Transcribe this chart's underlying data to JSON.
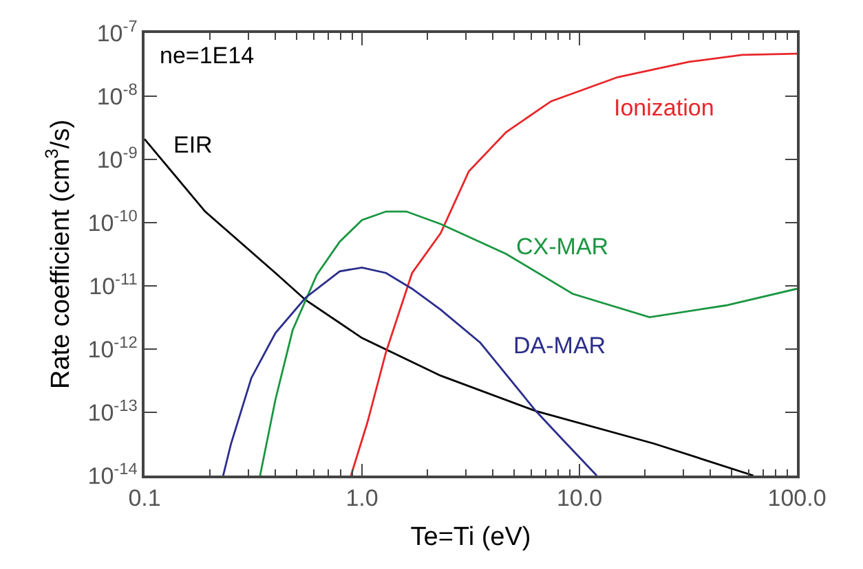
{
  "chart_data": {
    "type": "line",
    "xlabel": "Te=Ti (eV)",
    "ylabel": "Rate coefficient (cm$^{3}$/s)",
    "annotations": [
      "ne=1E14"
    ],
    "log": "xy",
    "legend": false,
    "marker": "none",
    "line_style": "solid",
    "xlim": [
      0.1,
      100
    ],
    "ylim": [
      1e-14,
      1e-07
    ],
    "xticks": [
      {
        "value": 0.1,
        "label": "0.1"
      },
      {
        "value": 1,
        "label": "1.0"
      },
      {
        "value": 10,
        "label": "10.0"
      },
      {
        "value": 100,
        "label": "100.0"
      }
    ],
    "yticks": [
      {
        "value": 1e-14,
        "label": "10$^{-14}$"
      },
      {
        "value": 1e-13,
        "label": "10$^{-13}$"
      },
      {
        "value": 1e-12,
        "label": "10$^{-12}$"
      },
      {
        "value": 1e-11,
        "label": "10$^{-11}$"
      },
      {
        "value": 1e-10,
        "label": "10$^{-10}$"
      },
      {
        "value": 1e-09,
        "label": "10$^{-9}$"
      },
      {
        "value": 1e-08,
        "label": "10$^{-8}$"
      },
      {
        "value": 1e-07,
        "label": "10$^{-7}$"
      }
    ],
    "series": [
      {
        "name": "EIR",
        "color": "#000000",
        "x": [
          0.1,
          0.19,
          0.4,
          0.55,
          1.0,
          2.3,
          6.3,
          22,
          63
        ],
        "values": [
          2.1e-09,
          1.5e-10,
          1.6e-11,
          6e-12,
          1.5e-12,
          3.8e-13,
          1.05e-13,
          3.2e-14,
          1e-14
        ]
      },
      {
        "name": "Ionization",
        "color": "#e8262a",
        "x": [
          0.89,
          1.06,
          1.29,
          1.7,
          2.3,
          3.1,
          4.6,
          7.4,
          15,
          32,
          56,
          100
        ],
        "values": [
          1e-14,
          7e-14,
          9e-13,
          1.6e-11,
          6.8e-11,
          6.5e-10,
          2.7e-09,
          8.3e-09,
          2e-08,
          3.5e-08,
          4.5e-08,
          4.7e-08
        ]
      },
      {
        "name": "CX-MAR",
        "color": "#1a9641",
        "x": [
          0.34,
          0.4,
          0.48,
          0.62,
          0.79,
          1.0,
          1.29,
          1.6,
          2.3,
          4.6,
          9.3,
          21,
          47,
          100
        ],
        "values": [
          1e-14,
          1.6e-13,
          2e-12,
          1.5e-11,
          5e-11,
          1.1e-10,
          1.5e-10,
          1.5e-10,
          9.5e-11,
          3.2e-11,
          7.5e-12,
          3.2e-12,
          4.9e-12,
          9e-12
        ]
      },
      {
        "name": "DA-MAR",
        "color": "#2b2d8c",
        "x": [
          0.23,
          0.25,
          0.31,
          0.4,
          0.55,
          0.79,
          1.0,
          1.29,
          1.7,
          2.3,
          3.5,
          6.3,
          8.5,
          12
        ],
        "values": [
          1e-14,
          3.2e-14,
          3.5e-13,
          1.8e-12,
          6.5e-12,
          1.7e-11,
          1.95e-11,
          1.6e-11,
          9e-12,
          4.2e-12,
          1.26e-12,
          1.05e-13,
          3.5e-14,
          1e-14
        ]
      }
    ]
  }
}
